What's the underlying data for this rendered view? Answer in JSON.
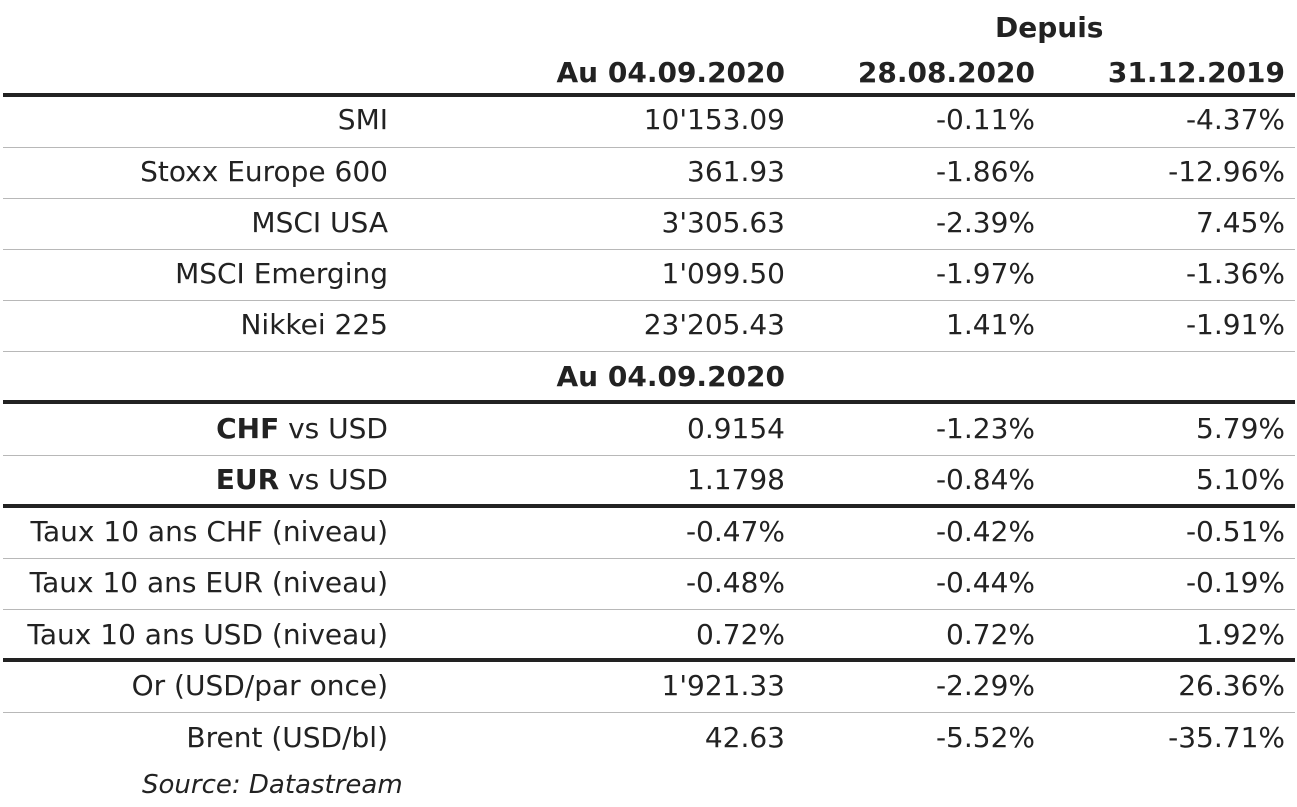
{
  "header": {
    "depuis": "Depuis",
    "col_current": "Au 04.09.2020",
    "col_week": "28.08.2020",
    "col_ytd": "31.12.2019"
  },
  "equities": [
    {
      "label": "SMI",
      "value": "10'153.09",
      "week": "-0.11%",
      "ytd": "-4.37%"
    },
    {
      "label": "Stoxx Europe 600",
      "value": "361.93",
      "week": "-1.86%",
      "ytd": "-12.96%"
    },
    {
      "label": "MSCI USA",
      "value": "3'305.63",
      "week": "-2.39%",
      "ytd": "7.45%"
    },
    {
      "label": "MSCI Emerging",
      "value": "1'099.50",
      "week": "-1.97%",
      "ytd": "-1.36%"
    },
    {
      "label": "Nikkei 225",
      "value": "23'205.43",
      "week": "1.41%",
      "ytd": "-1.91%"
    }
  ],
  "subheader": {
    "col_current": "Au 04.09.2020"
  },
  "fx": [
    {
      "label_bold": "CHF",
      "label_rest": " vs USD",
      "value": "0.9154",
      "week": "-1.23%",
      "ytd": "5.79%"
    },
    {
      "label_bold": "EUR",
      "label_rest": " vs USD",
      "value": "1.1798",
      "week": "-0.84%",
      "ytd": "5.10%"
    }
  ],
  "rates": [
    {
      "label": "Taux 10 ans CHF (niveau)",
      "value": "-0.47%",
      "week": "-0.42%",
      "ytd": "-0.51%"
    },
    {
      "label": "Taux 10 ans EUR (niveau)",
      "value": "-0.48%",
      "week": "-0.44%",
      "ytd": "-0.19%"
    },
    {
      "label": "Taux 10 ans USD (niveau)",
      "value": "0.72%",
      "week": "0.72%",
      "ytd": "1.92%"
    }
  ],
  "commodities": [
    {
      "label": "Or (USD/par once)",
      "value": "1'921.33",
      "week": "-2.29%",
      "ytd": "26.36%"
    },
    {
      "label": "Brent (USD/bl)",
      "value": "42.63",
      "week": "-5.52%",
      "ytd": "-35.71%"
    }
  ],
  "source": "Source: Datastream"
}
